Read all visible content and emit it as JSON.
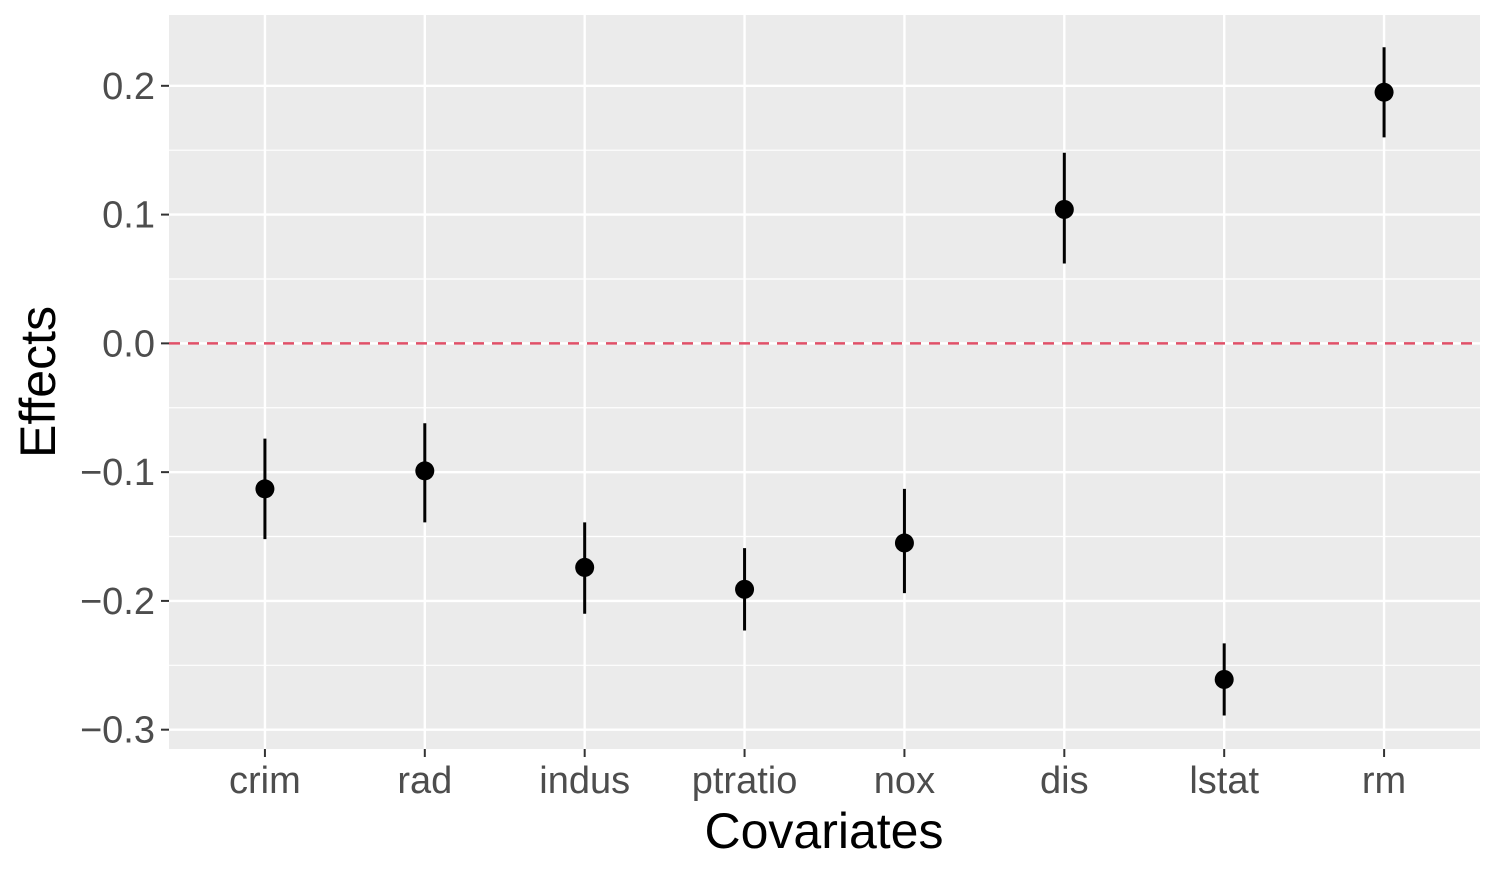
{
  "chart_data": {
    "type": "scatter",
    "subtype": "point-range",
    "xlabel": "Covariates",
    "ylabel": "Effects",
    "categories": [
      "crim",
      "rad",
      "indus",
      "ptratio",
      "nox",
      "dis",
      "lstat",
      "rm"
    ],
    "series": [
      {
        "values": [
          -0.113,
          -0.099,
          -0.174,
          -0.191,
          -0.155,
          0.104,
          -0.261,
          0.195
        ],
        "lower": [
          -0.152,
          -0.139,
          -0.21,
          -0.223,
          -0.194,
          0.062,
          -0.289,
          0.16
        ],
        "upper": [
          -0.074,
          -0.062,
          -0.139,
          -0.159,
          -0.113,
          0.148,
          -0.233,
          0.23
        ]
      }
    ],
    "ylim": [
      -0.315,
      0.255
    ],
    "yticks": [
      0.2,
      0.1,
      0.0,
      -0.1,
      -0.2,
      -0.3
    ],
    "ytick_labels": [
      "0.2",
      "0.1",
      "0.0",
      "−0.1",
      "−0.2",
      "−0.3"
    ],
    "reference_line": {
      "y": 0.0,
      "style": "dashed",
      "color": "#e05068"
    },
    "grid": true,
    "legend": "none",
    "colors": {
      "panel": "#ebebeb",
      "grid": "#ffffff",
      "point": "#000000",
      "tick_text": "#4d4d4d"
    }
  }
}
